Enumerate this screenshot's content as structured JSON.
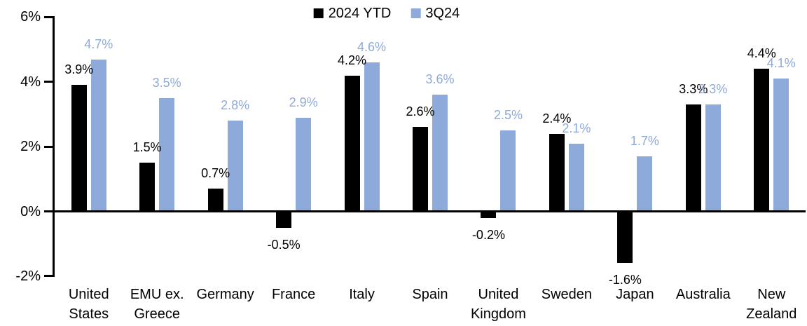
{
  "chart_data": {
    "type": "bar",
    "legend_position": "top-center",
    "grid": false,
    "value_suffix": "%",
    "ylim": [
      -2,
      6
    ],
    "ytick_values": [
      6,
      4,
      2,
      0,
      -2
    ],
    "yticks": [
      "6%",
      "4%",
      "2%",
      "0%",
      "-2%"
    ],
    "categories": [
      [
        "United",
        "States"
      ],
      [
        "EMU ex.",
        "Greece"
      ],
      [
        "Germany"
      ],
      [
        "France"
      ],
      [
        "Italy"
      ],
      [
        "Spain"
      ],
      [
        "United",
        "Kingdom"
      ],
      [
        "Sweden"
      ],
      [
        "Japan"
      ],
      [
        "Australia"
      ],
      [
        "New",
        "Zealand"
      ]
    ],
    "series": [
      {
        "name": "2024 YTD",
        "color": "#000000",
        "values": [
          3.9,
          1.5,
          0.7,
          -0.5,
          4.2,
          2.6,
          -0.2,
          2.4,
          -1.6,
          3.3,
          4.4
        ],
        "labels": [
          "3.9%",
          "1.5%",
          "0.7%",
          "-0.5%",
          "4.2%",
          "2.6%",
          "-0.2%",
          "2.4%",
          "-1.6%",
          "3.3%",
          "4.4%"
        ]
      },
      {
        "name": "3Q24",
        "color": "#8EAADB",
        "values": [
          4.7,
          3.5,
          2.8,
          2.9,
          4.6,
          3.6,
          2.5,
          2.1,
          1.7,
          3.3,
          4.1
        ],
        "labels": [
          "4.7%",
          "3.5%",
          "2.8%",
          "2.9%",
          "4.6%",
          "3.6%",
          "2.5%",
          "2.1%",
          "1.7%",
          "3.3%",
          "4.1%"
        ]
      }
    ],
    "axis_color": "#000000",
    "background": "#FFFFFF"
  }
}
